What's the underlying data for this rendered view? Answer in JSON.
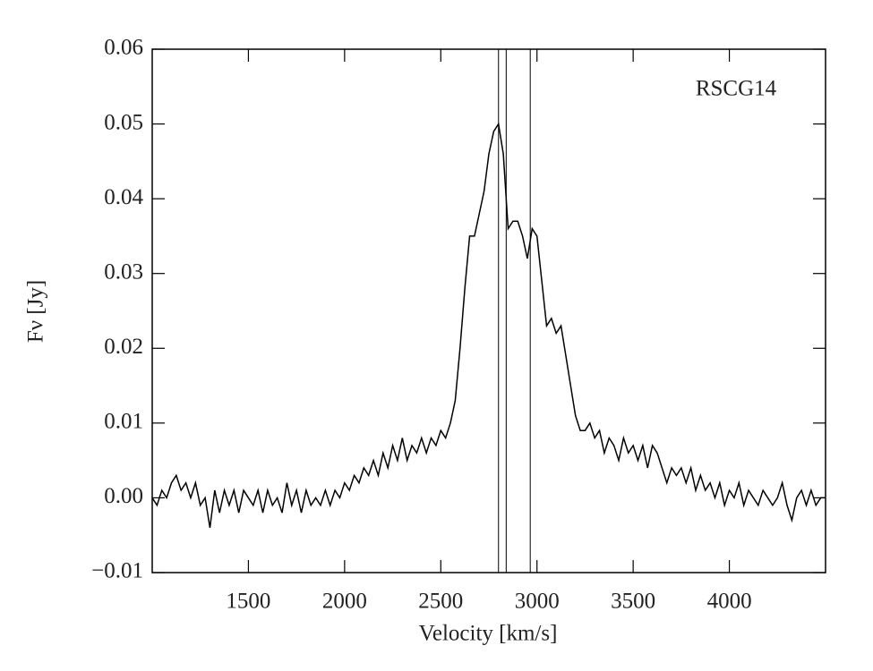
{
  "chart_data": {
    "type": "line",
    "xlabel": "Velocity [km/s]",
    "ylabel": "Fν [Jy]",
    "annotation": "RSCG14",
    "xlim": [
      1000,
      4500
    ],
    "xticks": [
      1500,
      2000,
      2500,
      3000,
      3500,
      4000
    ],
    "ylim": [
      -0.01,
      0.06
    ],
    "yticks": [
      {
        "value": -0.01,
        "label": "−0.01"
      },
      {
        "value": 0,
        "label": "0.00"
      },
      {
        "value": 0.01,
        "label": "0.01"
      },
      {
        "value": 0.02,
        "label": "0.02"
      },
      {
        "value": 0.03,
        "label": "0.03"
      },
      {
        "value": 0.04,
        "label": "0.04"
      },
      {
        "value": 0.05,
        "label": "0.05"
      },
      {
        "value": 0.06,
        "label": "0.06"
      }
    ],
    "vlines": [
      2800,
      2840,
      2965
    ],
    "color": "#000000",
    "x": [
      1000,
      1025,
      1050,
      1075,
      1100,
      1125,
      1150,
      1175,
      1200,
      1225,
      1250,
      1275,
      1300,
      1325,
      1350,
      1375,
      1400,
      1425,
      1450,
      1475,
      1500,
      1525,
      1550,
      1575,
      1600,
      1625,
      1650,
      1675,
      1700,
      1725,
      1750,
      1775,
      1800,
      1825,
      1850,
      1875,
      1900,
      1925,
      1950,
      1975,
      2000,
      2025,
      2050,
      2075,
      2100,
      2125,
      2150,
      2175,
      2200,
      2225,
      2250,
      2275,
      2300,
      2325,
      2350,
      2375,
      2400,
      2425,
      2450,
      2475,
      2500,
      2525,
      2550,
      2575,
      2600,
      2625,
      2650,
      2675,
      2700,
      2725,
      2750,
      2775,
      2800,
      2825,
      2850,
      2875,
      2900,
      2925,
      2950,
      2975,
      3000,
      3025,
      3050,
      3075,
      3100,
      3125,
      3150,
      3175,
      3200,
      3225,
      3250,
      3275,
      3300,
      3325,
      3350,
      3375,
      3400,
      3425,
      3450,
      3475,
      3500,
      3525,
      3550,
      3575,
      3600,
      3625,
      3650,
      3675,
      3700,
      3725,
      3750,
      3775,
      3800,
      3825,
      3850,
      3875,
      3900,
      3925,
      3950,
      3975,
      4000,
      4025,
      4050,
      4075,
      4100,
      4125,
      4150,
      4175,
      4200,
      4225,
      4250,
      4275,
      4300,
      4325,
      4350,
      4375,
      4400,
      4425,
      4450,
      4475,
      4500
    ],
    "values": [
      0.0,
      -0.001,
      0.001,
      0.0,
      0.002,
      0.003,
      0.001,
      0.002,
      0.0,
      0.002,
      -0.001,
      0.0,
      -0.004,
      0.001,
      -0.002,
      0.001,
      -0.001,
      0.001,
      -0.002,
      0.001,
      0.0,
      -0.001,
      0.001,
      -0.002,
      0.001,
      -0.001,
      0.0,
      -0.002,
      0.002,
      -0.001,
      0.001,
      -0.002,
      0.001,
      -0.001,
      0.0,
      -0.001,
      0.001,
      -0.001,
      0.001,
      0.0,
      0.002,
      0.001,
      0.003,
      0.002,
      0.004,
      0.003,
      0.005,
      0.003,
      0.006,
      0.004,
      0.007,
      0.005,
      0.008,
      0.005,
      0.007,
      0.006,
      0.008,
      0.006,
      0.008,
      0.007,
      0.009,
      0.008,
      0.01,
      0.013,
      0.02,
      0.028,
      0.035,
      0.035,
      0.038,
      0.041,
      0.046,
      0.049,
      0.05,
      0.046,
      0.036,
      0.037,
      0.037,
      0.035,
      0.032,
      0.036,
      0.035,
      0.029,
      0.023,
      0.024,
      0.022,
      0.023,
      0.019,
      0.015,
      0.011,
      0.009,
      0.009,
      0.01,
      0.008,
      0.009,
      0.006,
      0.008,
      0.007,
      0.005,
      0.008,
      0.006,
      0.007,
      0.005,
      0.007,
      0.004,
      0.007,
      0.006,
      0.004,
      0.002,
      0.004,
      0.003,
      0.004,
      0.002,
      0.004,
      0.001,
      0.003,
      0.001,
      0.002,
      0.0,
      0.002,
      -0.001,
      0.001,
      0.0,
      0.002,
      -0.001,
      0.001,
      0.0,
      -0.001,
      0.001,
      0.0,
      -0.001,
      0.0,
      0.002,
      -0.001,
      -0.003,
      0.0,
      0.001,
      -0.001,
      0.001,
      -0.001,
      0.0,
      0.0
    ]
  }
}
